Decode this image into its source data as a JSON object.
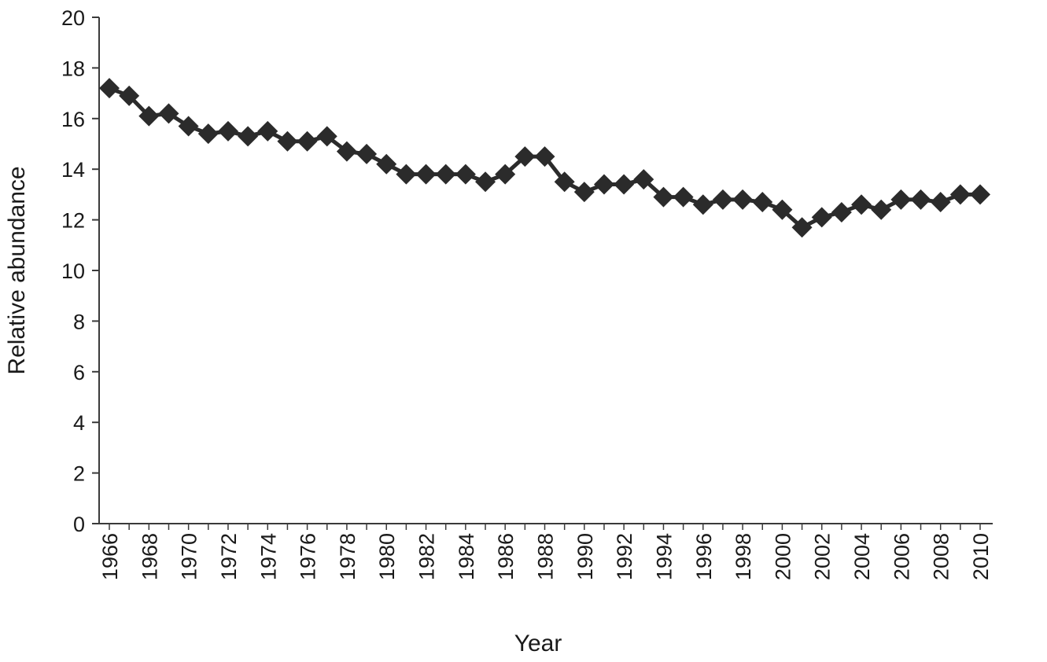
{
  "chart_data": {
    "type": "line",
    "title": "",
    "xlabel": "Year",
    "ylabel": "Relative abundance",
    "ylim": [
      0,
      20
    ],
    "yticks": [
      0,
      2,
      4,
      6,
      8,
      10,
      12,
      14,
      16,
      18,
      20
    ],
    "xlim": [
      1966,
      2010
    ],
    "xtick_labels": [
      "1966",
      "1968",
      "1970",
      "1972",
      "1974",
      "1976",
      "1978",
      "1980",
      "1982",
      "1984",
      "1986",
      "1988",
      "1990",
      "1992",
      "1994",
      "1996",
      "1998",
      "2000",
      "2002",
      "2004",
      "2006",
      "2008",
      "2010"
    ],
    "grid": false,
    "legend": "none",
    "series": [
      {
        "marker": "diamond",
        "color": "#2b2b2b",
        "x": [
          1966,
          1967,
          1968,
          1969,
          1970,
          1971,
          1972,
          1973,
          1974,
          1975,
          1976,
          1977,
          1978,
          1979,
          1980,
          1981,
          1982,
          1983,
          1984,
          1985,
          1986,
          1987,
          1988,
          1989,
          1990,
          1991,
          1992,
          1993,
          1994,
          1995,
          1996,
          1997,
          1998,
          1999,
          2000,
          2001,
          2002,
          2003,
          2004,
          2005,
          2006,
          2007,
          2008,
          2009,
          2010
        ],
        "values": [
          17.2,
          16.9,
          16.1,
          16.2,
          15.7,
          15.4,
          15.5,
          15.3,
          15.5,
          15.1,
          15.1,
          15.3,
          14.7,
          14.6,
          14.2,
          13.8,
          13.8,
          13.8,
          13.8,
          13.5,
          13.8,
          14.5,
          14.5,
          13.5,
          13.1,
          13.4,
          13.4,
          13.6,
          12.9,
          12.9,
          12.6,
          12.8,
          12.8,
          12.7,
          12.4,
          11.7,
          12.1,
          12.3,
          12.6,
          12.4,
          12.8,
          12.8,
          12.7,
          13.0,
          13.0
        ]
      }
    ]
  }
}
